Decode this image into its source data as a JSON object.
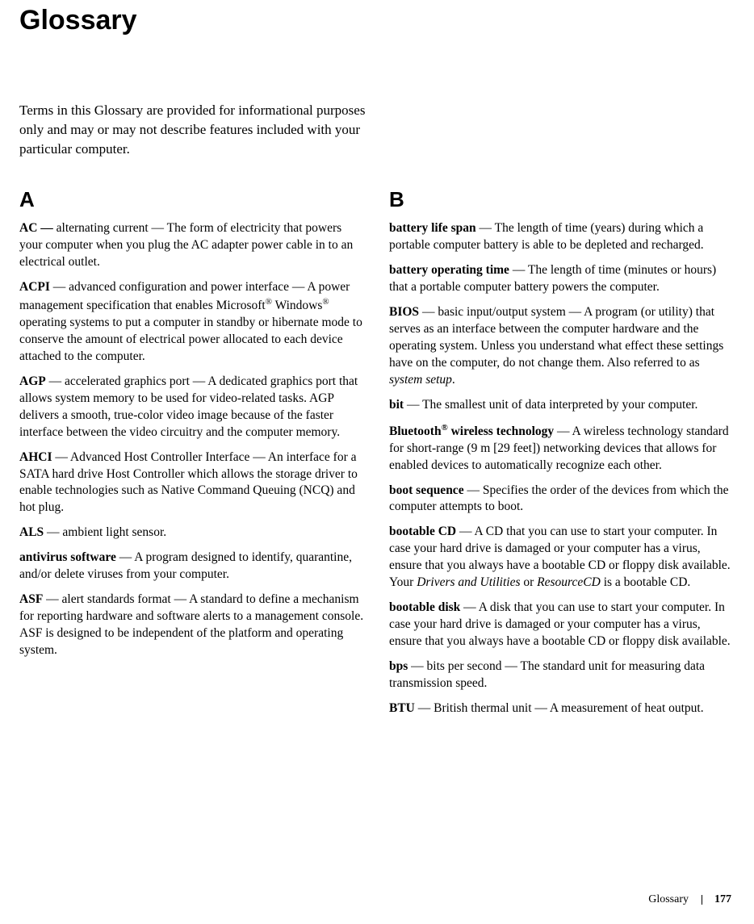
{
  "title": "Glossary",
  "intro": "Terms in this Glossary are provided for informational purposes only and may or may not describe features included with your particular computer.",
  "sectionA": {
    "letter": "A",
    "entries": {
      "ac": {
        "term": "AC — ",
        "def": "alternating current — The form of electricity that powers your computer when you plug the AC adapter power cable in to an electrical outlet."
      },
      "acpi": {
        "term": "ACPI",
        "pre": " — advanced configuration and power interface — A power management specification that enables Microsoft",
        "sup1": "®",
        "mid": " Windows",
        "sup2": "®",
        "post": " operating systems to put a computer in standby or hibernate mode to conserve the amount of electrical power allocated to each device attached to the computer."
      },
      "agp": {
        "term": "AGP",
        "def": " — accelerated graphics port — A dedicated graphics port that allows system memory to be used for video-related tasks. AGP delivers a smooth, true-color video image because of the faster interface between the video circuitry and the computer memory."
      },
      "ahci": {
        "term": "AHCI",
        "def": " — Advanced Host Controller Interface — An interface for a SATA hard drive Host Controller which allows the storage driver to enable technologies such as Native Command Queuing (NCQ) and hot plug."
      },
      "als": {
        "term": "ALS",
        "def": " — ambient light sensor."
      },
      "antivirus": {
        "term": "antivirus software",
        "def": " — A program designed to identify, quarantine, and/or delete viruses from your computer."
      },
      "asf": {
        "term": "ASF",
        "def": " — alert standards format — A standard to define a mechanism for reporting hardware and software alerts to a management console. ASF is designed to be independent of the platform and operating system."
      }
    }
  },
  "sectionB": {
    "letter": "B",
    "entries": {
      "batlife": {
        "term": "battery life span",
        "def": " — The length of time (years) during which a portable computer battery is able to be depleted and recharged."
      },
      "batop": {
        "term": "battery operating time",
        "def": " — The length of time (minutes or hours) that a portable computer battery powers the computer."
      },
      "bios": {
        "term": "BIOS",
        "pre": " — basic input/output system — A program (or utility) that serves as an interface between the computer hardware and the operating system. Unless you understand what effect these settings have on the computer, do not change them. Also referred to as ",
        "ital": "system setup",
        "post": "."
      },
      "bit": {
        "term": "bit",
        "def": " — The smallest unit of data interpreted by your computer."
      },
      "bluetooth": {
        "term1": "Bluetooth",
        "sup": "®",
        "term2": " wireless technology",
        "def": " — A wireless technology standard for short-range (9 m [29 feet]) networking devices that allows for enabled devices to automatically recognize each other."
      },
      "bootseq": {
        "term": "boot sequence",
        "def": " — Specifies the order of the devices from which the computer attempts to boot."
      },
      "bootcd": {
        "term": "bootable CD",
        "pre": " — A CD that you can use to start your computer. In case your hard drive is damaged or your computer has a virus, ensure that you always have a bootable CD or floppy disk available. Your ",
        "ital1": "Drivers and Utilities",
        "mid": " or ",
        "ital2": "ResourceCD",
        "post": " is a bootable CD."
      },
      "bootdisk": {
        "term": "bootable disk",
        "def": " — A disk that you can use to start your computer. In case your hard drive is damaged or your computer has a virus, ensure that you always have a bootable CD or floppy disk available."
      },
      "bps": {
        "term": "bps",
        "def": " — bits per second — The standard unit for measuring data transmission speed."
      },
      "btu": {
        "term": "BTU",
        "def": " — British thermal unit — A measurement of heat output."
      }
    }
  },
  "footer": {
    "label": "Glossary",
    "page": "177"
  }
}
